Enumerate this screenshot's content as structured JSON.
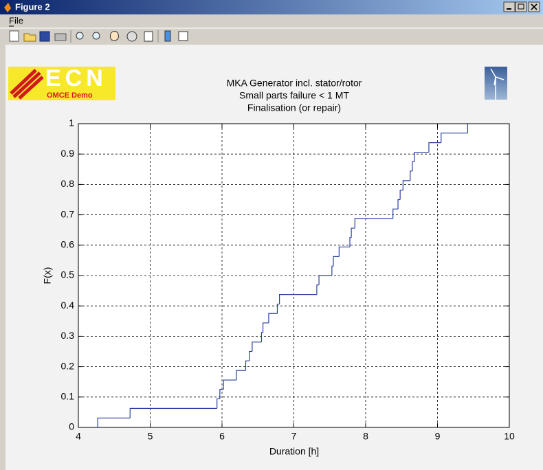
{
  "window": {
    "title": "Figure 2",
    "menu": [
      "File"
    ]
  },
  "logo": {
    "text": "ECN",
    "subtitle": "OMCE Demo"
  },
  "chart_data": {
    "type": "line",
    "drawstyle": "steps",
    "title": [
      "MKA   Generator incl. stator/rotor",
      "Small parts failure < 1 MT",
      "Finalisation (or repair)"
    ],
    "x_label": "Duration [h]",
    "y_label": "F(x)",
    "x": [
      4.27,
      4.72,
      5.93,
      5.97,
      6.02,
      6.2,
      6.33,
      6.38,
      6.42,
      6.55,
      6.57,
      6.65,
      6.77,
      6.8,
      7.32,
      7.35,
      7.53,
      7.55,
      7.63,
      7.78,
      7.8,
      7.85,
      8.38,
      8.45,
      8.48,
      8.52,
      8.62,
      8.65,
      8.68,
      8.88,
      9.05,
      9.42
    ],
    "values": [
      0.031,
      0.0625,
      0.094,
      0.125,
      0.156,
      0.1875,
      0.219,
      0.25,
      0.281,
      0.3125,
      0.344,
      0.375,
      0.406,
      0.4375,
      0.469,
      0.5,
      0.531,
      0.5625,
      0.594,
      0.625,
      0.656,
      0.6875,
      0.719,
      0.75,
      0.781,
      0.8125,
      0.844,
      0.875,
      0.906,
      0.9375,
      0.969,
      1
    ],
    "color": "#2b3f9e",
    "xlim": [
      4,
      10
    ],
    "xticks": [
      4,
      5,
      6,
      7,
      8,
      9,
      10
    ],
    "ylim": [
      0,
      1
    ],
    "yticks": [
      0,
      0.1,
      0.2,
      0.3,
      0.4,
      0.5,
      0.6,
      0.7,
      0.8,
      0.9,
      1
    ],
    "grid": true
  }
}
